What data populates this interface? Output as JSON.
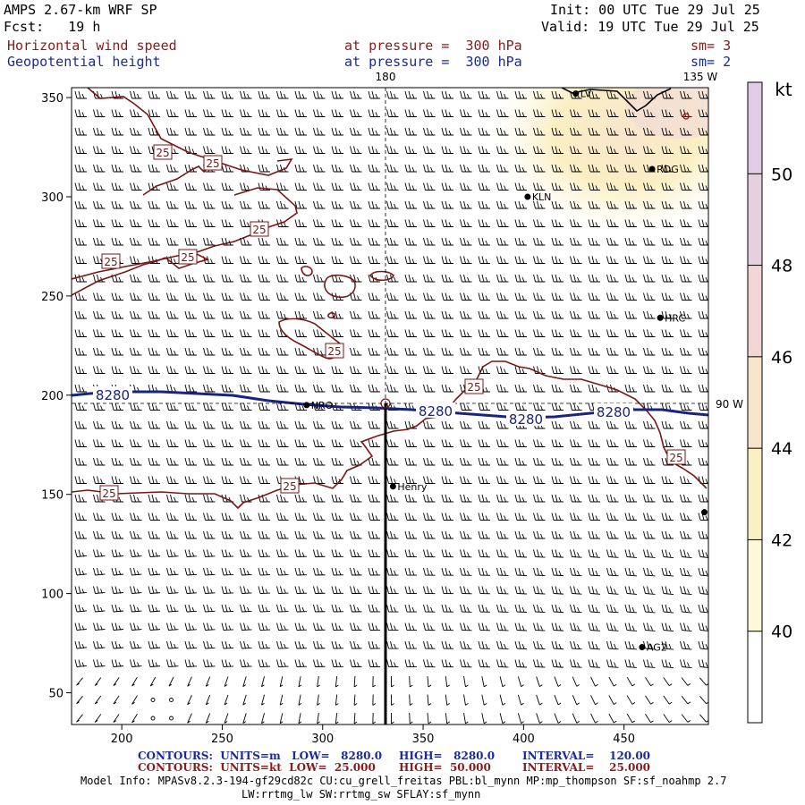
{
  "header": {
    "model": "AMPS 2.67-km WRF SP",
    "init": "Init: 00 UTC Tue 29 Jul 25",
    "fcst": "Fcst:   19 h",
    "valid": "Valid: 19 UTC Tue 29 Jul 25",
    "field1_name": "Horizontal wind speed",
    "field1_level": "at pressure =  300 hPa",
    "field1_sm": "sm= 3",
    "field2_name": "Geopotential height",
    "field2_level": "at pressure =  300 hPa",
    "field2_sm": "sm= 2"
  },
  "map": {
    "lon_labels": {
      "top": "180",
      "top_right": "135 W",
      "right": "90 W"
    },
    "x_ticks": [
      200,
      250,
      300,
      350,
      400,
      450
    ],
    "y_ticks": [
      50,
      100,
      150,
      200,
      250,
      300,
      350
    ],
    "x_range": [
      175,
      492
    ],
    "y_range": [
      34,
      355
    ],
    "stations": [
      {
        "name": "LV",
        "x": 426,
        "y": 352
      },
      {
        "name": "RDG",
        "x": 464,
        "y": 314
      },
      {
        "name": "KLN",
        "x": 402,
        "y": 300
      },
      {
        "name": "HRC",
        "x": 468,
        "y": 239
      },
      {
        "name": "NRO",
        "x": 292,
        "y": 195
      },
      {
        "name": "Henry",
        "x": 335,
        "y": 154
      },
      {
        "name": "AG2",
        "x": 459,
        "y": 73
      }
    ],
    "unlabeled_station": {
      "x": 490,
      "y": 141
    },
    "speed_contour_labels": [
      "25",
      "25",
      "25",
      "25",
      "25",
      "25",
      "25",
      "25",
      "25",
      "25"
    ],
    "height_contour_labels": [
      "8280",
      "8280",
      "8280",
      "8280"
    ],
    "colorbar": {
      "unit": "kt",
      "ticks": [
        40,
        42,
        44,
        46,
        48,
        50
      ],
      "range": [
        38,
        52
      ],
      "colors": [
        "#ffffff",
        "#fdf8d8",
        "#fbefc4",
        "#f8e4cc",
        "#f2d6d6",
        "#e6d0e0",
        "#e2cce8"
      ]
    }
  },
  "footer": {
    "c1_a": "CONTOURS:  UNITS=m   LOW=   8280.0",
    "c1_b": "HIGH=   8280.0",
    "c1_c": "INTERVAL=    120.00",
    "c2_a": "CONTOURS:  UNITS=kt  LOW=  25.000",
    "c2_b": "HIGH=  50.000",
    "c2_c": "INTERVAL=    25.000",
    "model_info": "Model Info: MPASv8.2.3-194-gf29cd82c CU:cu_grell_freitas PBL:bl_mynn MP:mp_thompson SF:sf_noahmp 2.7",
    "model_info2": "LW:rrtmg_lw SW:rrtmg_sw SFLAY:sf_mynn"
  }
}
